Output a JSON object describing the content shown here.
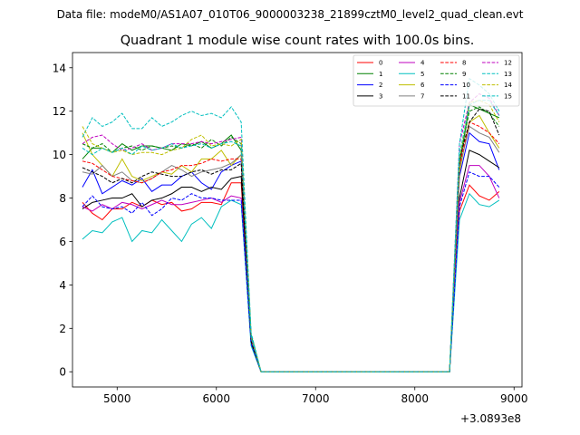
{
  "suptitle": "Data file: modeM0/AS1A07_010T06_9000003238_21899cztM0_level2_quad_clean.evt",
  "chart_data": {
    "type": "line",
    "title": "Quadrant 1 module wise count rates with 100.0s bins.",
    "xlabel": "",
    "ylabel": "",
    "offset_text": "+3.0893e8",
    "xlim": [
      4550,
      9080
    ],
    "ylim": [
      -0.7,
      14.7
    ],
    "xticks": [
      5000,
      6000,
      7000,
      8000,
      9000
    ],
    "xtick_labels": [
      "5000",
      "6000",
      "7000",
      "8000",
      "9000"
    ],
    "yticks": [
      0,
      2,
      4,
      6,
      8,
      10,
      12,
      14
    ],
    "ytick_labels": [
      "0",
      "2",
      "4",
      "6",
      "8",
      "10",
      "12",
      "14"
    ],
    "grid": false,
    "legend_position": "top-right",
    "legend_ncol": 4,
    "x": [
      4650,
      4750,
      4850,
      4950,
      5050,
      5150,
      5250,
      5350,
      5450,
      5550,
      5650,
      5750,
      5850,
      5950,
      6050,
      6150,
      6250,
      6350,
      6450,
      6550,
      6650,
      6750,
      6850,
      6950,
      7050,
      7150,
      7250,
      7350,
      7450,
      7550,
      7650,
      7750,
      7850,
      7950,
      8050,
      8150,
      8250,
      8350,
      8450,
      8550,
      8650,
      8750,
      8850
    ],
    "series": [
      {
        "name": "0",
        "color": "#ff0000",
        "dash": "solid",
        "values": [
          7.8,
          7.3,
          7.0,
          7.5,
          7.5,
          7.8,
          7.6,
          7.9,
          7.7,
          7.8,
          7.4,
          7.5,
          7.8,
          7.8,
          7.7,
          8.7,
          8.7,
          1.4,
          0,
          0,
          0,
          0,
          0,
          0,
          0,
          0,
          0,
          0,
          0,
          0,
          0,
          0,
          0,
          0,
          0,
          0,
          0,
          0,
          7.4,
          8.6,
          8.1,
          7.9,
          8.3
        ]
      },
      {
        "name": "1",
        "color": "#008000",
        "dash": "solid",
        "values": [
          9.8,
          10.3,
          10.3,
          10.1,
          10.5,
          10.2,
          10.4,
          10.4,
          10.3,
          10.2,
          10.5,
          10.4,
          10.6,
          10.3,
          10.5,
          10.9,
          10.2,
          1.7,
          0,
          0,
          0,
          0,
          0,
          0,
          0,
          0,
          0,
          0,
          0,
          0,
          0,
          0,
          0,
          0,
          0,
          0,
          0,
          0,
          9.5,
          12.3,
          12.1,
          11.9,
          11.7
        ]
      },
      {
        "name": "2",
        "color": "#0000ff",
        "dash": "solid",
        "values": [
          8.5,
          9.3,
          8.2,
          8.5,
          8.8,
          8.6,
          8.9,
          8.3,
          8.6,
          8.6,
          9.0,
          9.2,
          8.7,
          8.4,
          9.2,
          9.5,
          9.7,
          1.5,
          0,
          0,
          0,
          0,
          0,
          0,
          0,
          0,
          0,
          0,
          0,
          0,
          0,
          0,
          0,
          0,
          0,
          0,
          0,
          0,
          9.0,
          11.0,
          10.6,
          10.5,
          9.3
        ]
      },
      {
        "name": "3",
        "color": "#000000",
        "dash": "solid",
        "values": [
          7.5,
          7.8,
          7.9,
          8.0,
          8.0,
          8.2,
          7.6,
          7.9,
          8.0,
          8.2,
          8.5,
          8.5,
          8.3,
          8.5,
          8.4,
          8.9,
          9.0,
          1.3,
          0,
          0,
          0,
          0,
          0,
          0,
          0,
          0,
          0,
          0,
          0,
          0,
          0,
          0,
          0,
          0,
          0,
          0,
          0,
          0,
          8.0,
          10.2,
          10.0,
          9.7,
          9.4
        ]
      },
      {
        "name": "4",
        "color": "#bf00bf",
        "dash": "solid",
        "values": [
          7.6,
          7.4,
          7.7,
          7.5,
          7.8,
          7.7,
          7.5,
          7.7,
          7.9,
          7.7,
          7.7,
          7.8,
          7.9,
          8.0,
          7.8,
          8.1,
          8.0,
          1.4,
          0,
          0,
          0,
          0,
          0,
          0,
          0,
          0,
          0,
          0,
          0,
          0,
          0,
          0,
          0,
          0,
          0,
          0,
          0,
          0,
          7.8,
          9.5,
          9.5,
          9.0,
          8.0
        ]
      },
      {
        "name": "5",
        "color": "#00bfbf",
        "dash": "solid",
        "values": [
          6.1,
          6.5,
          6.4,
          6.9,
          7.1,
          6.0,
          6.5,
          6.4,
          7.0,
          6.5,
          6.0,
          6.8,
          7.1,
          6.6,
          7.6,
          7.9,
          7.7,
          1.2,
          0,
          0,
          0,
          0,
          0,
          0,
          0,
          0,
          0,
          0,
          0,
          0,
          0,
          0,
          0,
          0,
          0,
          0,
          0,
          0,
          7.0,
          8.2,
          7.7,
          7.6,
          7.9
        ]
      },
      {
        "name": "6",
        "color": "#bfbf00",
        "dash": "solid",
        "values": [
          11.0,
          10.0,
          9.5,
          9.0,
          9.8,
          9.0,
          8.8,
          9.0,
          9.2,
          9.1,
          9.5,
          9.2,
          9.8,
          9.8,
          10.2,
          9.5,
          10.0,
          1.6,
          0,
          0,
          0,
          0,
          0,
          0,
          0,
          0,
          0,
          0,
          0,
          0,
          0,
          0,
          0,
          0,
          0,
          0,
          0,
          0,
          9.2,
          11.5,
          11.8,
          11.0,
          10.3
        ]
      },
      {
        "name": "7",
        "color": "#808080",
        "dash": "solid",
        "values": [
          9.2,
          9.1,
          9.5,
          9.0,
          9.2,
          8.8,
          8.7,
          8.9,
          9.2,
          9.5,
          9.3,
          9.0,
          9.2,
          9.3,
          9.4,
          9.6,
          10.0,
          1.5,
          0,
          0,
          0,
          0,
          0,
          0,
          0,
          0,
          0,
          0,
          0,
          0,
          0,
          0,
          0,
          0,
          0,
          0,
          0,
          0,
          9.4,
          11.3,
          11.0,
          10.8,
          10.1
        ]
      },
      {
        "name": "8",
        "color": "#ff0000",
        "dash": "dashed",
        "values": [
          9.7,
          9.6,
          9.3,
          9.0,
          8.9,
          8.8,
          8.7,
          8.9,
          9.2,
          9.3,
          9.5,
          9.5,
          9.6,
          9.8,
          9.7,
          9.8,
          9.8,
          1.5,
          0,
          0,
          0,
          0,
          0,
          0,
          0,
          0,
          0,
          0,
          0,
          0,
          0,
          0,
          0,
          0,
          0,
          0,
          0,
          0,
          9.5,
          11.5,
          11.3,
          11.0,
          10.5
        ]
      },
      {
        "name": "9",
        "color": "#008000",
        "dash": "dashed",
        "values": [
          10.5,
          10.3,
          10.5,
          10.1,
          10.3,
          10.4,
          10.2,
          10.4,
          10.3,
          10.4,
          10.3,
          10.5,
          10.3,
          10.7,
          10.4,
          10.8,
          10.5,
          1.7,
          0,
          0,
          0,
          0,
          0,
          0,
          0,
          0,
          0,
          0,
          0,
          0,
          0,
          0,
          0,
          0,
          0,
          0,
          0,
          0,
          9.8,
          12.0,
          12.2,
          11.9,
          11.3
        ]
      },
      {
        "name": "10",
        "color": "#0000ff",
        "dash": "dashed",
        "values": [
          7.6,
          8.1,
          7.6,
          7.5,
          7.6,
          7.3,
          7.8,
          7.2,
          7.5,
          8.0,
          7.9,
          8.2,
          8.0,
          8.0,
          7.9,
          7.9,
          7.9,
          1.3,
          0,
          0,
          0,
          0,
          0,
          0,
          0,
          0,
          0,
          0,
          0,
          0,
          0,
          0,
          0,
          0,
          0,
          0,
          0,
          0,
          7.6,
          9.2,
          9.0,
          9.0,
          8.5
        ]
      },
      {
        "name": "11",
        "color": "#000000",
        "dash": "dashed",
        "values": [
          9.4,
          9.2,
          9.0,
          8.7,
          8.9,
          8.7,
          9.0,
          9.2,
          9.1,
          9.0,
          9.0,
          9.2,
          9.3,
          9.1,
          9.3,
          9.3,
          9.6,
          1.4,
          0,
          0,
          0,
          0,
          0,
          0,
          0,
          0,
          0,
          0,
          0,
          0,
          0,
          0,
          0,
          0,
          0,
          0,
          0,
          0,
          9.8,
          11.5,
          12.1,
          12.0,
          10.9
        ]
      },
      {
        "name": "12",
        "color": "#bf00bf",
        "dash": "dashed",
        "values": [
          10.5,
          10.8,
          10.9,
          10.5,
          10.2,
          10.3,
          10.5,
          10.2,
          10.3,
          10.5,
          10.5,
          10.5,
          10.6,
          10.5,
          10.6,
          10.7,
          10.8,
          1.6,
          0,
          0,
          0,
          0,
          0,
          0,
          0,
          0,
          0,
          0,
          0,
          0,
          0,
          0,
          0,
          0,
          0,
          0,
          0,
          0,
          10.5,
          12.4,
          12.8,
          12.6,
          11.8
        ]
      },
      {
        "name": "13",
        "color": "#00bfbf",
        "dash": "dashed",
        "values": [
          10.8,
          11.7,
          11.3,
          11.5,
          11.9,
          11.2,
          11.2,
          11.7,
          11.3,
          11.5,
          11.8,
          12.0,
          11.8,
          11.9,
          11.7,
          12.2,
          11.5,
          1.8,
          0,
          0,
          0,
          0,
          0,
          0,
          0,
          0,
          0,
          0,
          0,
          0,
          0,
          0,
          0,
          0,
          0,
          0,
          0,
          0,
          10.5,
          13.5,
          13.2,
          12.8,
          12.0
        ]
      },
      {
        "name": "14",
        "color": "#bfbf00",
        "dash": "dashed",
        "values": [
          11.3,
          10.5,
          10.3,
          10.1,
          10.2,
          10.0,
          10.1,
          10.1,
          10.0,
          10.2,
          10.3,
          10.7,
          10.9,
          10.4,
          10.5,
          10.4,
          10.7,
          1.6,
          0,
          0,
          0,
          0,
          0,
          0,
          0,
          0,
          0,
          0,
          0,
          0,
          0,
          0,
          0,
          0,
          0,
          0,
          0,
          0,
          9.8,
          12.4,
          12.5,
          12.3,
          11.5
        ]
      },
      {
        "name": "15",
        "color": "#00bfbf",
        "dash": "dashed",
        "values": [
          10.3,
          10.0,
          10.3,
          10.1,
          10.3,
          10.0,
          10.4,
          10.2,
          10.3,
          10.5,
          10.3,
          10.4,
          10.5,
          10.3,
          10.5,
          10.6,
          10.4,
          1.6,
          0,
          0,
          0,
          0,
          0,
          0,
          0,
          0,
          0,
          0,
          0,
          0,
          0,
          0,
          0,
          0,
          0,
          0,
          0,
          0,
          10.0,
          12.3,
          12.5,
          12.5,
          11.8
        ]
      }
    ]
  }
}
